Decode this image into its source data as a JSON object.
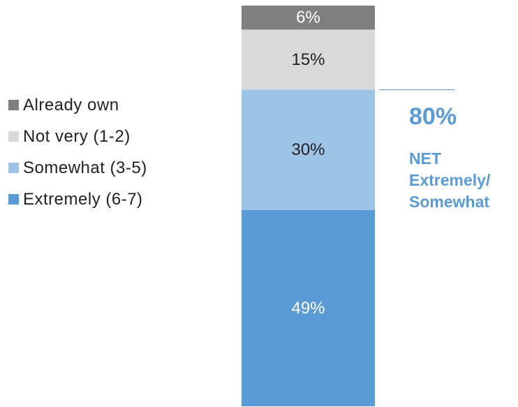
{
  "chart_data": {
    "type": "bar",
    "stacked": true,
    "orientation": "vertical",
    "categories": [
      ""
    ],
    "series": [
      {
        "name": "Extremely (6-7)",
        "values": [
          49
        ],
        "label": "49%",
        "color": "#5b9bd5",
        "label_color": "#ffffff"
      },
      {
        "name": "Somewhat (3-5)",
        "values": [
          30
        ],
        "label": "30%",
        "color": "#9dc3e6",
        "label_color": "#222222"
      },
      {
        "name": "Not very (1-2)",
        "values": [
          15
        ],
        "label": "15%",
        "color": "#d9d9d9",
        "label_color": "#222222"
      },
      {
        "name": "Already own",
        "values": [
          6
        ],
        "label": "6%",
        "color": "#7f7f7f",
        "label_color": "#ffffff"
      }
    ],
    "ylim": [
      0,
      100
    ],
    "legend_position": "left",
    "legend_order": [
      "Already own",
      "Not very (1-2)",
      "Somewhat (3-5)",
      "Extremely (6-7)"
    ],
    "annotation": {
      "value": "80%",
      "label": "NET\nExtremely/\nSomewhat",
      "color": "#5b9bd5"
    },
    "grid": false
  }
}
